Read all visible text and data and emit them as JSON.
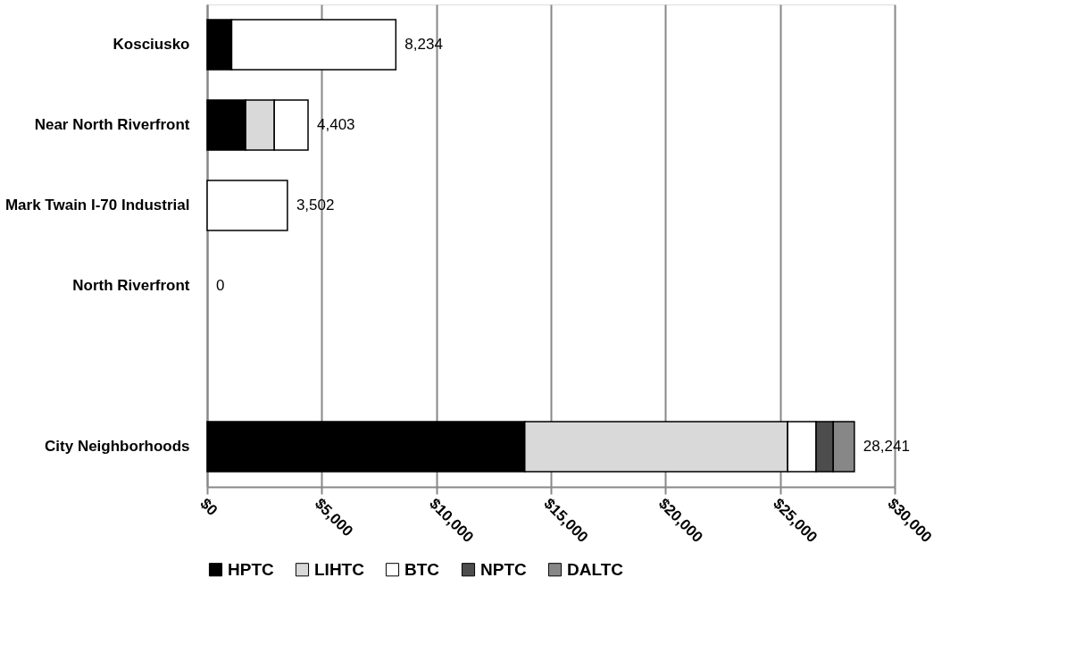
{
  "chart_data": {
    "type": "bar",
    "orientation": "horizontal",
    "stacked": true,
    "categories": [
      "Kosciusko",
      "Near North Riverfront",
      "Mark Twain I-70 Industrial",
      "North Riverfront",
      null,
      "City Neighborhoods"
    ],
    "series": [
      {
        "name": "HPTC",
        "color": "#000000",
        "values": [
          1070,
          1680,
          null,
          null,
          null,
          13860
        ]
      },
      {
        "name": "LIHTC",
        "color": "#d9d9d9",
        "values": [
          null,
          1250,
          null,
          null,
          null,
          11470
        ]
      },
      {
        "name": "BTC",
        "color": "#ffffff",
        "values": [
          7164,
          1473,
          3502,
          null,
          null,
          1240
        ]
      },
      {
        "name": "NPTC",
        "color": "#4d4d4d",
        "values": [
          null,
          null,
          null,
          null,
          null,
          750
        ]
      },
      {
        "name": "DALTC",
        "color": "#878787",
        "values": [
          null,
          null,
          null,
          null,
          null,
          921
        ]
      }
    ],
    "totals": [
      "8,234",
      "4,403",
      "3,502",
      "0",
      null,
      "28,241"
    ],
    "xlim": [
      0,
      30000
    ],
    "xticks": [
      {
        "value": 0,
        "label": "$0"
      },
      {
        "value": 5000,
        "label": "$5,000"
      },
      {
        "value": 10000,
        "label": "$10,000"
      },
      {
        "value": 15000,
        "label": "$15,000"
      },
      {
        "value": 20000,
        "label": "$20,000"
      },
      {
        "value": 25000,
        "label": "$25,000"
      },
      {
        "value": 30000,
        "label": "$30,000"
      }
    ],
    "grid": "x",
    "legend": "bottom"
  }
}
